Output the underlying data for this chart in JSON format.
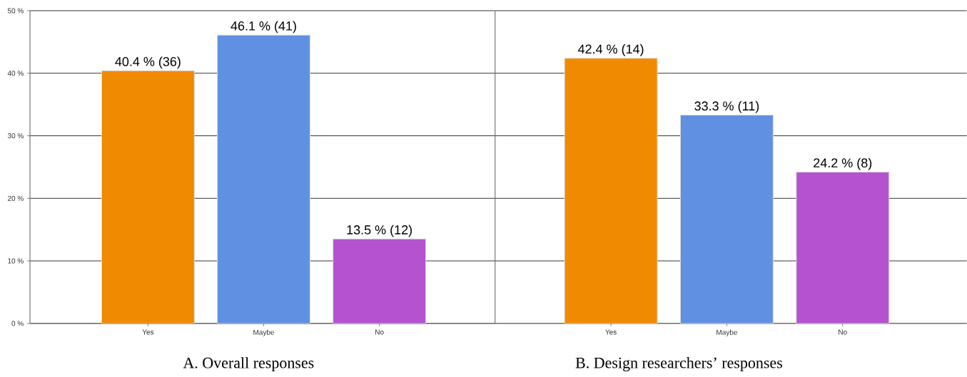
{
  "chart_data": [
    {
      "type": "bar",
      "xlabel": "A. Overall responses",
      "categories": [
        "Yes",
        "Maybe",
        "No"
      ],
      "values": [
        40.4,
        46.1,
        13.5
      ],
      "colors": [
        "#f08a00",
        "#6090e2",
        "#b452d0"
      ],
      "value_labels": [
        "40.4 % (36)",
        "46.1 % (41)",
        "13.5 % (12)"
      ],
      "ylim": [
        0,
        50
      ],
      "yticks": [
        {
          "value": 0,
          "label": "0 %"
        },
        {
          "value": 10,
          "label": "10 %"
        },
        {
          "value": 20,
          "label": "20 %"
        },
        {
          "value": 30,
          "label": "30 %"
        },
        {
          "value": 40,
          "label": "40 %"
        },
        {
          "value": 50,
          "label": "50 %"
        }
      ],
      "grid": "y"
    },
    {
      "type": "bar",
      "xlabel": "B. Design researchers’ responses",
      "categories": [
        "Yes",
        "Maybe",
        "No"
      ],
      "values": [
        42.4,
        33.3,
        24.2
      ],
      "colors": [
        "#f08a00",
        "#6090e2",
        "#b452d0"
      ],
      "value_labels": [
        "42.4 % (14)",
        "33.3 % (11)",
        "24.2 % (8)"
      ],
      "ylim": [
        0,
        50
      ],
      "yticks": [
        {
          "value": 0,
          "label": null
        },
        {
          "value": 10,
          "label": null
        },
        {
          "value": 20,
          "label": null
        },
        {
          "value": 30,
          "label": null
        },
        {
          "value": 40,
          "label": null
        },
        {
          "value": 50,
          "label": null
        }
      ],
      "grid": "y",
      "tick_labels": "x"
    }
  ]
}
